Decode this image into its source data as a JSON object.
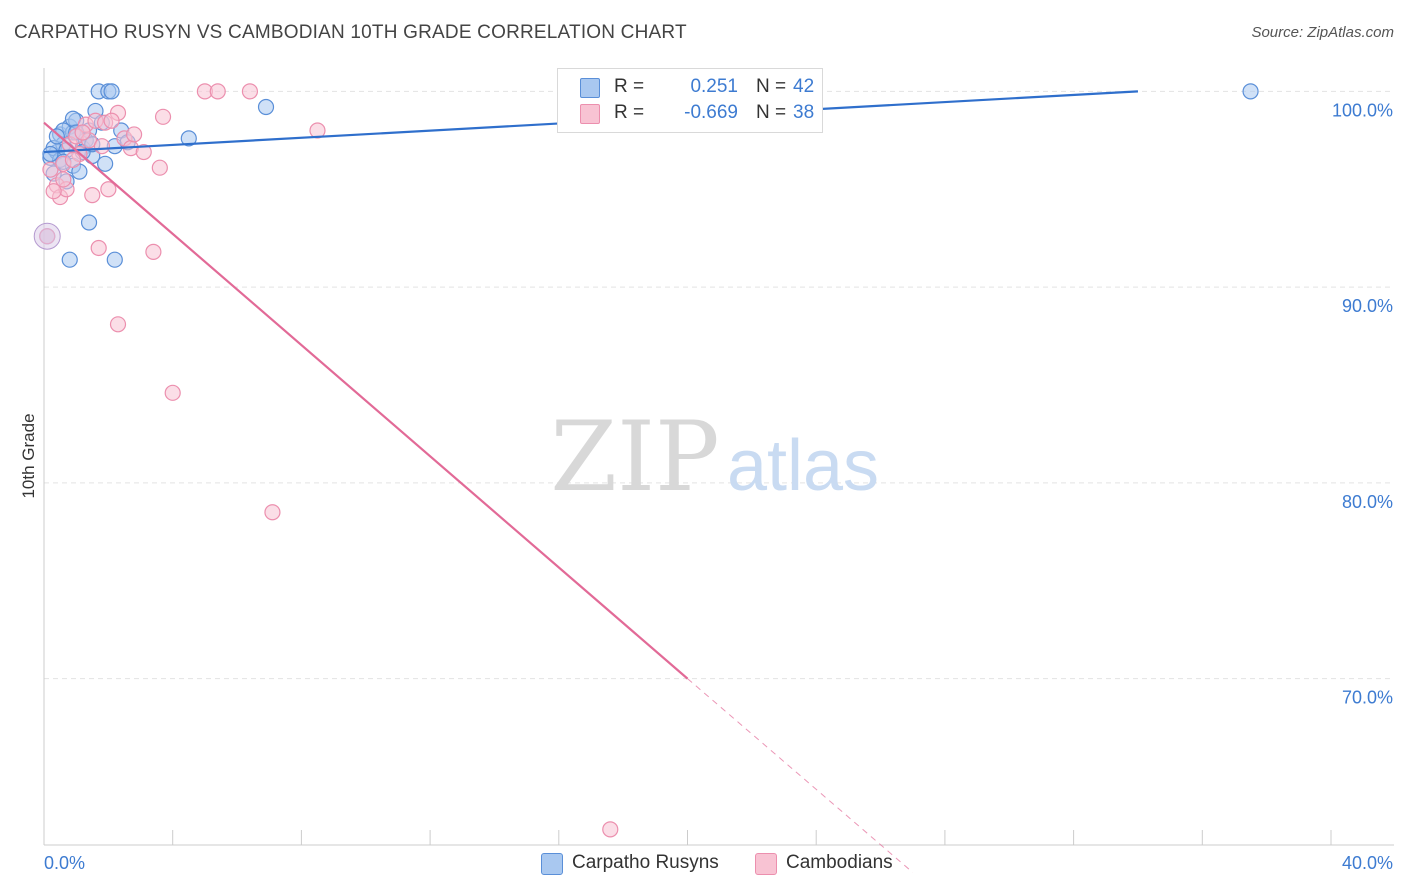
{
  "title": "CARPATHO RUSYN VS CAMBODIAN 10TH GRADE CORRELATION CHART",
  "source": "Source: ZipAtlas.com",
  "watermark": {
    "zip": "ZIP",
    "atlas": "atlas"
  },
  "legend": {
    "series1": {
      "r_label": "R =",
      "r_value": "0.251",
      "n_label": "N =",
      "n_value": "42"
    },
    "series2": {
      "r_label": "R =",
      "r_value": "-0.669",
      "n_label": "N =",
      "n_value": "38"
    }
  },
  "bottom_legend": {
    "series1": "Carpatho Rusyns",
    "series2": "Cambodians"
  },
  "colors": {
    "blue_fill": "#a9c8f0",
    "blue_stroke": "#5a8fd8",
    "blue_line": "#2f6fcc",
    "pink_fill": "#f8c3d3",
    "pink_stroke": "#ec8fae",
    "pink_line": "#e26a97",
    "tick_text": "#3d7bd1",
    "grid": "#e3e3e3"
  },
  "chart_data": {
    "type": "scatter",
    "title": "CARPATHO RUSYN VS CAMBODIAN 10TH GRADE CORRELATION CHART",
    "xlabel": "",
    "ylabel": "10th Grade",
    "xlim": [
      0,
      40
    ],
    "ylim": [
      61.5,
      101.5
    ],
    "x_tick_labels": [
      "0.0%",
      "40.0%"
    ],
    "y_ticks": [
      100,
      90,
      80,
      70
    ],
    "y_tick_labels": [
      "100.0%",
      "90.0%",
      "80.0%",
      "70.0%"
    ],
    "grid": true,
    "series": [
      {
        "name": "Carpatho Rusyns",
        "color": "#5a8fd8",
        "r": 0.251,
        "n": 42,
        "trend": {
          "x": [
            0,
            34
          ],
          "y": [
            96.9,
            100.0
          ]
        },
        "points": [
          [
            0.2,
            96.6
          ],
          [
            0.4,
            96.9
          ],
          [
            0.5,
            97.8
          ],
          [
            0.6,
            97.3
          ],
          [
            0.8,
            98.2
          ],
          [
            0.9,
            97.9
          ],
          [
            1.0,
            98.5
          ],
          [
            1.2,
            97.1
          ],
          [
            1.4,
            98.0
          ],
          [
            1.5,
            96.7
          ],
          [
            0.3,
            95.8
          ],
          [
            0.7,
            95.4
          ],
          [
            0.9,
            96.2
          ],
          [
            1.1,
            95.9
          ],
          [
            1.3,
            97.5
          ],
          [
            1.6,
            99.0
          ],
          [
            1.8,
            98.4
          ],
          [
            1.9,
            96.3
          ],
          [
            2.2,
            97.2
          ],
          [
            2.4,
            98.0
          ],
          [
            1.7,
            100.0
          ],
          [
            2.0,
            100.0
          ],
          [
            2.1,
            100.0
          ],
          [
            2.6,
            97.4
          ],
          [
            4.5,
            97.6
          ],
          [
            6.9,
            99.2
          ],
          [
            1.4,
            93.3
          ],
          [
            0.8,
            91.4
          ],
          [
            2.2,
            91.4
          ],
          [
            37.5,
            100.0
          ],
          [
            0.3,
            97.1
          ],
          [
            0.6,
            98.0
          ],
          [
            0.9,
            98.6
          ],
          [
            1.2,
            96.9
          ],
          [
            0.5,
            96.5
          ],
          [
            0.4,
            97.7
          ],
          [
            0.7,
            97.0
          ],
          [
            1.0,
            97.9
          ],
          [
            0.2,
            96.8
          ],
          [
            1.5,
            97.3
          ],
          [
            0.6,
            96.4
          ],
          [
            0.1,
            92.6
          ]
        ]
      },
      {
        "name": "Cambodians",
        "color": "#ec8fae",
        "r": -0.669,
        "n": 38,
        "trend": {
          "x": [
            0,
            20
          ],
          "y": [
            98.4,
            70.0
          ]
        },
        "trend_dashed": {
          "x": [
            20,
            27
          ],
          "y": [
            70.0,
            60.1
          ]
        },
        "points": [
          [
            0.2,
            96.0
          ],
          [
            0.4,
            95.2
          ],
          [
            0.5,
            94.6
          ],
          [
            0.6,
            96.3
          ],
          [
            0.7,
            95.0
          ],
          [
            0.8,
            97.3
          ],
          [
            1.0,
            97.7
          ],
          [
            1.1,
            96.8
          ],
          [
            1.3,
            98.3
          ],
          [
            1.4,
            97.5
          ],
          [
            1.5,
            94.7
          ],
          [
            1.6,
            98.5
          ],
          [
            1.7,
            92.0
          ],
          [
            1.9,
            98.4
          ],
          [
            2.0,
            95.0
          ],
          [
            2.3,
            98.9
          ],
          [
            2.5,
            97.6
          ],
          [
            2.7,
            97.1
          ],
          [
            2.8,
            97.8
          ],
          [
            3.1,
            96.9
          ],
          [
            3.4,
            91.8
          ],
          [
            3.6,
            96.1
          ],
          [
            3.7,
            98.7
          ],
          [
            5.0,
            100.0
          ],
          [
            5.4,
            100.0
          ],
          [
            6.4,
            100.0
          ],
          [
            8.5,
            98.0
          ],
          [
            2.3,
            88.1
          ],
          [
            4.0,
            84.6
          ],
          [
            7.1,
            78.5
          ],
          [
            17.6,
            62.3
          ],
          [
            0.3,
            94.9
          ],
          [
            0.9,
            96.5
          ],
          [
            1.2,
            97.9
          ],
          [
            0.6,
            95.5
          ],
          [
            1.8,
            97.2
          ],
          [
            2.1,
            98.5
          ],
          [
            0.1,
            92.6
          ]
        ]
      }
    ]
  }
}
